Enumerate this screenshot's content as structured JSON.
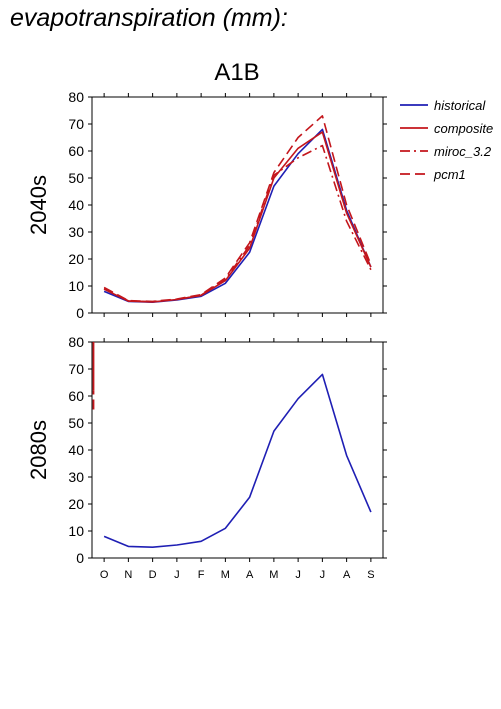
{
  "page_title": "evapotranspiration (mm):",
  "colors": {
    "historical": "#1f1fb4",
    "scenario": "#c4161c",
    "axis": "#000000",
    "background": "#ffffff"
  },
  "legend": [
    {
      "name": "historical",
      "style": "solid",
      "color": "#1f1fb4"
    },
    {
      "name": "composite",
      "style": "solid",
      "color": "#c4161c"
    },
    {
      "name": "miroc_3.2",
      "style": "dashdot",
      "color": "#c4161c"
    },
    {
      "name": "pcm1",
      "style": "dashed",
      "color": "#c4161c"
    }
  ],
  "chart_data": [
    {
      "type": "line",
      "title": "A1B",
      "ylabel": "2040s",
      "xlabel": "",
      "categories": [
        "O",
        "N",
        "D",
        "J",
        "F",
        "M",
        "A",
        "M",
        "J",
        "J",
        "A",
        "S"
      ],
      "show_tick_labels_x": false,
      "ylim": [
        0,
        80
      ],
      "yticks": [
        0,
        10,
        20,
        30,
        40,
        50,
        60,
        70,
        80
      ],
      "grid": false,
      "legend_placement": "right",
      "series": [
        {
          "name": "historical",
          "style": "solid",
          "color": "#1f1fb4",
          "values": [
            8,
            4.3,
            4,
            4.8,
            6.2,
            11,
            22.5,
            47,
            59,
            68,
            38,
            17
          ]
        },
        {
          "name": "composite",
          "style": "solid",
          "color": "#c4161c",
          "values": [
            8.8,
            4.4,
            4.1,
            5,
            6.5,
            12,
            24,
            50,
            61,
            67,
            37,
            17
          ]
        },
        {
          "name": "miroc_3.2",
          "style": "dashdot",
          "color": "#c4161c",
          "values": [
            9,
            4.5,
            4.2,
            5,
            6.6,
            12.5,
            25,
            51,
            57.5,
            62,
            34,
            16
          ]
        },
        {
          "name": "pcm1",
          "style": "dashed",
          "color": "#c4161c",
          "values": [
            9.5,
            4.6,
            4.3,
            5.2,
            6.8,
            13,
            26,
            52,
            65,
            73,
            40,
            18
          ]
        }
      ]
    },
    {
      "type": "line",
      "title": "",
      "ylabel": "2080s",
      "xlabel": "",
      "categories": [
        "O",
        "N",
        "D",
        "J",
        "F",
        "M",
        "A",
        "M",
        "J",
        "J",
        "A",
        "S"
      ],
      "show_tick_labels_x": true,
      "ylim": [
        0,
        80
      ],
      "yticks": [
        0,
        10,
        20,
        30,
        40,
        50,
        60,
        70,
        80
      ],
      "grid": false,
      "series": [
        {
          "name": "historical",
          "style": "solid",
          "color": "#1f1fb4",
          "values": [
            8,
            4.3,
            4,
            4.8,
            6.2,
            11,
            22.5,
            47,
            59,
            68,
            38,
            17
          ]
        }
      ],
      "edge_artifacts": [
        {
          "style": "solid",
          "color": "#c4161c",
          "y_from": 62,
          "y_to": 80
        },
        {
          "style": "dashed",
          "color": "#c4161c",
          "y_from": 55,
          "y_to": 62
        }
      ]
    }
  ]
}
